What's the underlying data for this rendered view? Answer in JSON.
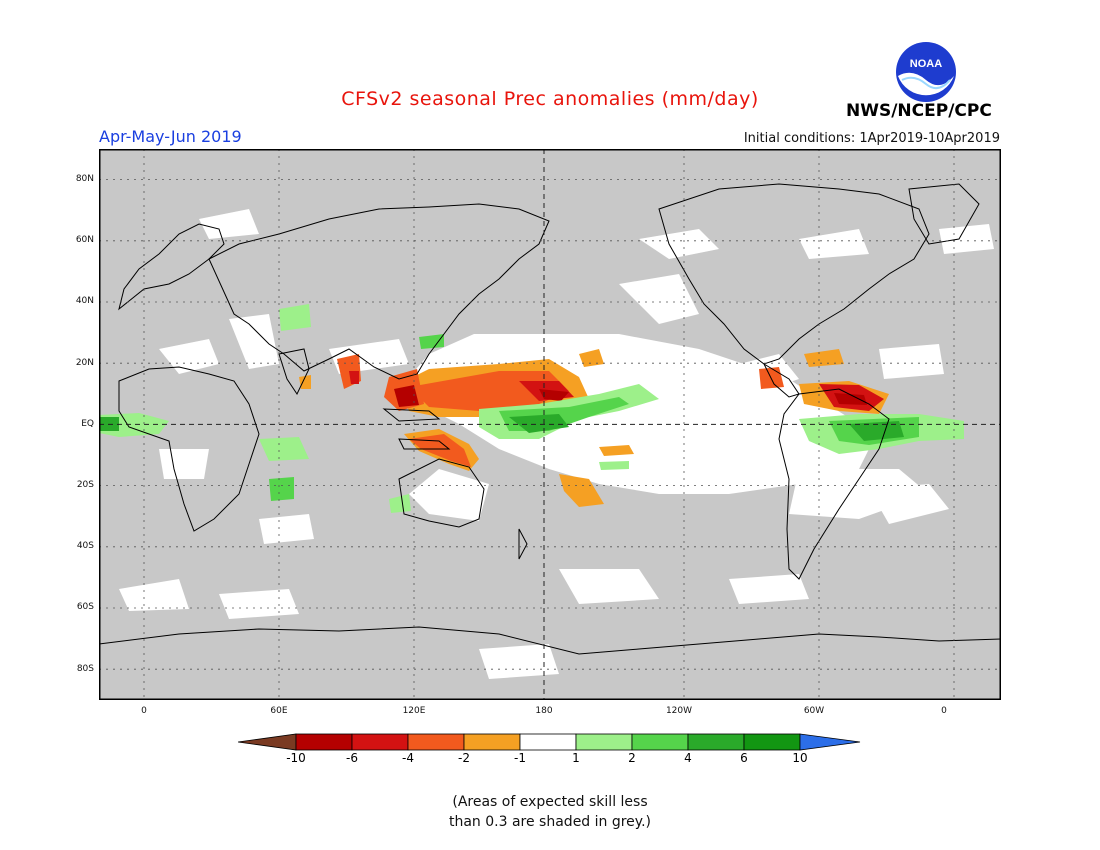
{
  "header": {
    "title": "CFSv2 seasonal Prec anomalies (mm/day)",
    "period": "Apr-May-Jun 2019",
    "initial_conditions": "Initial conditions: 1Apr2019-10Apr2019",
    "agency": "NWS/NCEP/CPC",
    "logo_text": "NOAA"
  },
  "map": {
    "projection": "lat-lon",
    "background_color": "#c8c8c8",
    "grid": true,
    "lat_labels": [
      "80N",
      "60N",
      "40N",
      "20N",
      "EQ",
      "20S",
      "40S",
      "60S",
      "80S"
    ],
    "lon_labels": [
      "0",
      "60E",
      "120E",
      "180",
      "120W",
      "60W",
      "0"
    ]
  },
  "colorbar": {
    "labels": [
      "-10",
      "-6",
      "-4",
      "-2",
      "-1",
      "1",
      "2",
      "4",
      "6",
      "10"
    ],
    "colors": [
      "#7a3a22",
      "#b40000",
      "#d31212",
      "#f25a1e",
      "#f5a023",
      "#ffffff",
      "#9df08a",
      "#55d44b",
      "#2aaa2a",
      "#129612",
      "#2c6ee8"
    ]
  },
  "footnote": {
    "line1": "(Areas of expected skill less",
    "line2": "than 0.3 are shaded in grey.)"
  }
}
